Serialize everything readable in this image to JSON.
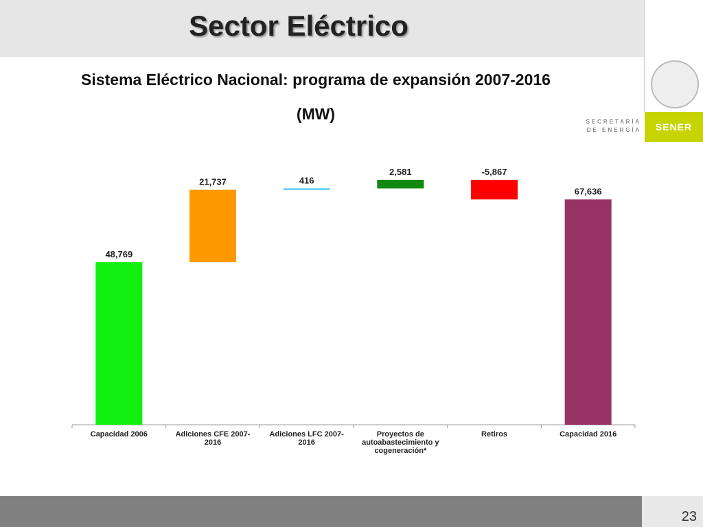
{
  "slide": {
    "title": "Sector Eléctrico",
    "agency": "SECRETARÍA DE ENERGÍA",
    "brand": "SENER",
    "page_number": "23"
  },
  "chart_data": {
    "type": "waterfall",
    "title": "Sistema Eléctrico Nacional: programa de expansión 2007-2016",
    "subtitle": "(MW)",
    "categories": [
      "Capacidad 2006",
      "Adiciones CFE 2007-2016",
      "Adiciones LFC 2007-2016",
      "Proyectos de autoabastecimiento y cogeneración*",
      "Retiros",
      "Capacidad 2016"
    ],
    "values": [
      48769,
      21737,
      416,
      2581,
      -5867,
      67636
    ],
    "value_labels": [
      "48,769",
      "21,737",
      "416",
      "2,581",
      "-5,867",
      "67,636"
    ],
    "colors": [
      "#11f011",
      "#ff9900",
      "#33bbee",
      "#118811",
      "#ff0000",
      "#993366"
    ]
  }
}
